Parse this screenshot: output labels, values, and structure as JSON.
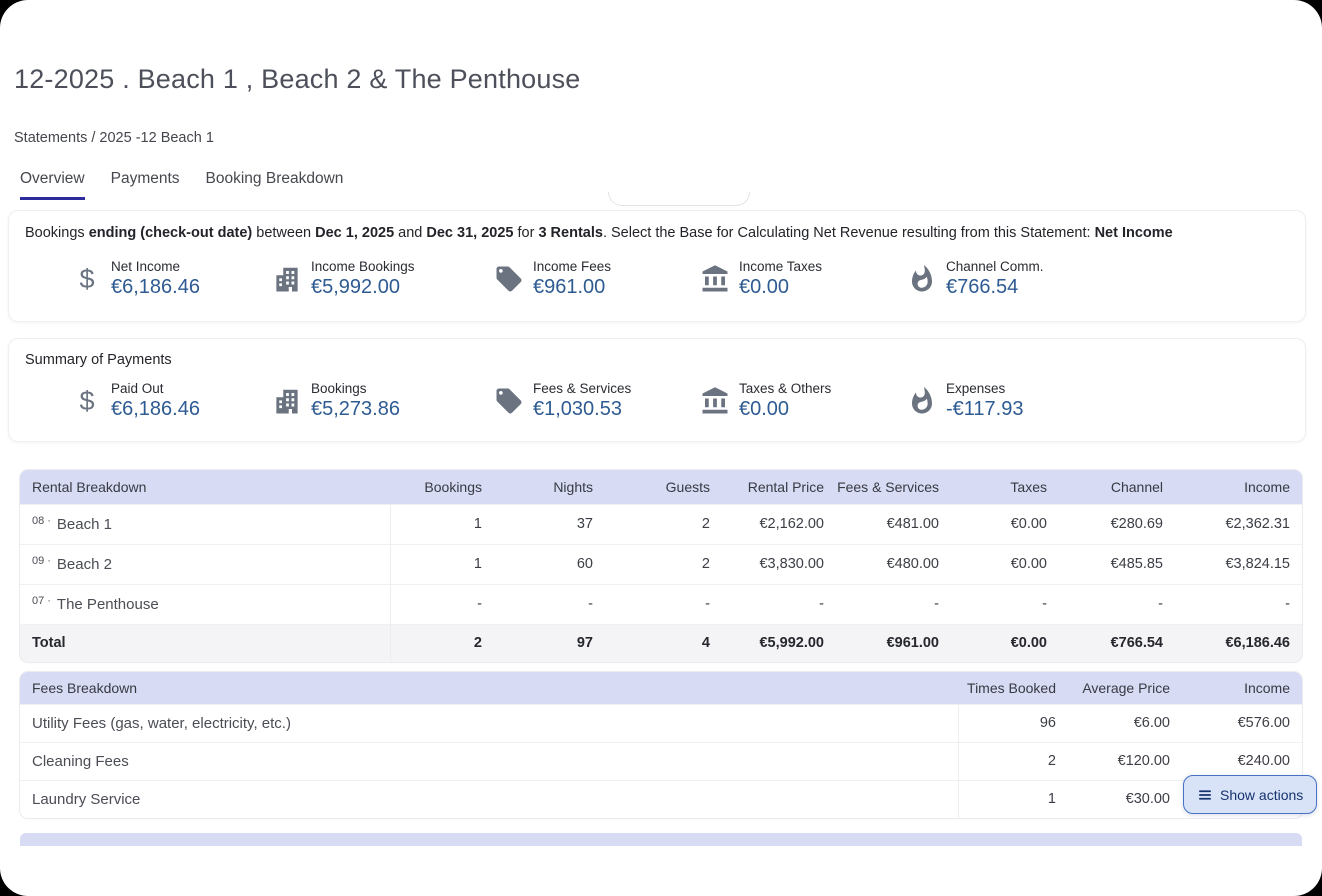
{
  "page": {
    "title": "12-2025 . Beach 1 , Beach 2 & The Penthouse",
    "breadcrumb": "Statements / 2025 -12 Beach 1"
  },
  "tabs": [
    {
      "label": "Overview",
      "active": true
    },
    {
      "label": "Payments",
      "active": false
    },
    {
      "label": "Booking Breakdown",
      "active": false
    }
  ],
  "colors": {
    "tab_underline": "#2c2c9c",
    "metric_value": "#2e5b92",
    "table_header_bg": "#d7dbf3",
    "button_bg": "#d9e3f8",
    "button_border": "#4672c4",
    "button_text": "#16336e",
    "icon_gray": "#6b7380"
  },
  "booking_summary": {
    "sentence_parts": [
      {
        "text": "Bookings ",
        "bold": false
      },
      {
        "text": "ending (check-out date)",
        "bold": true
      },
      {
        "text": " between ",
        "bold": false
      },
      {
        "text": "Dec 1, 2025",
        "bold": true
      },
      {
        "text": " and ",
        "bold": false
      },
      {
        "text": "Dec 31, 2025",
        "bold": true
      },
      {
        "text": " for ",
        "bold": false
      },
      {
        "text": "3 Rentals",
        "bold": true
      },
      {
        "text": ". Select the Base for Calculating Net Revenue resulting from this Statement: ",
        "bold": false
      },
      {
        "text": "Net Income",
        "bold": true
      }
    ],
    "metrics": [
      {
        "icon": "dollar-icon",
        "label": "Net Income",
        "value": "€6,186.46"
      },
      {
        "icon": "building-icon",
        "label": "Income Bookings",
        "value": "€5,992.00"
      },
      {
        "icon": "tag-icon",
        "label": "Income Fees",
        "value": "€961.00"
      },
      {
        "icon": "bank-icon",
        "label": "Income Taxes",
        "value": "€0.00"
      },
      {
        "icon": "flame-icon",
        "label": "Channel Comm.",
        "value": "€766.54"
      }
    ]
  },
  "payments_summary": {
    "title": "Summary of Payments",
    "metrics": [
      {
        "icon": "dollar-icon",
        "label": "Paid Out",
        "value": "€6,186.46"
      },
      {
        "icon": "building-icon",
        "label": "Bookings",
        "value": "€5,273.86"
      },
      {
        "icon": "tag-icon",
        "label": "Fees & Services",
        "value": "€1,030.53"
      },
      {
        "icon": "bank-icon",
        "label": "Taxes & Others",
        "value": "€0.00"
      },
      {
        "icon": "flame-icon",
        "label": "Expenses",
        "value": "-€117.93"
      }
    ]
  },
  "rental_table": {
    "title": "Rental Breakdown",
    "row_separator": "·",
    "columns": [
      "Bookings",
      "Nights",
      "Guests",
      "Rental Price",
      "Fees & Services",
      "Taxes",
      "Channel",
      "Income"
    ],
    "rows": [
      {
        "code": "08",
        "name": "Beach 1",
        "values": [
          "1",
          "37",
          "2",
          "€2,162.00",
          "€481.00",
          "€0.00",
          "€280.69",
          "€2,362.31"
        ]
      },
      {
        "code": "09",
        "name": "Beach 2",
        "values": [
          "1",
          "60",
          "2",
          "€3,830.00",
          "€480.00",
          "€0.00",
          "€485.85",
          "€3,824.15"
        ]
      },
      {
        "code": "07",
        "name": "The Penthouse",
        "values": [
          "-",
          "-",
          "-",
          "-",
          "-",
          "-",
          "-",
          "-"
        ]
      }
    ],
    "total": {
      "label": "Total",
      "values": [
        "2",
        "97",
        "4",
        "€5,992.00",
        "€961.00",
        "€0.00",
        "€766.54",
        "€6,186.46"
      ]
    }
  },
  "fees_table": {
    "title": "Fees Breakdown",
    "columns": [
      "Times Booked",
      "Average Price",
      "Income"
    ],
    "rows": [
      {
        "name": "Utility Fees (gas, water, electricity, etc.)",
        "values": [
          "96",
          "€6.00",
          "€576.00"
        ]
      },
      {
        "name": "Cleaning Fees",
        "values": [
          "2",
          "€120.00",
          "€240.00"
        ]
      },
      {
        "name": "Laundry Service",
        "values": [
          "1",
          "€30.00",
          ""
        ]
      }
    ]
  },
  "actions_button": {
    "label": "Show actions"
  }
}
